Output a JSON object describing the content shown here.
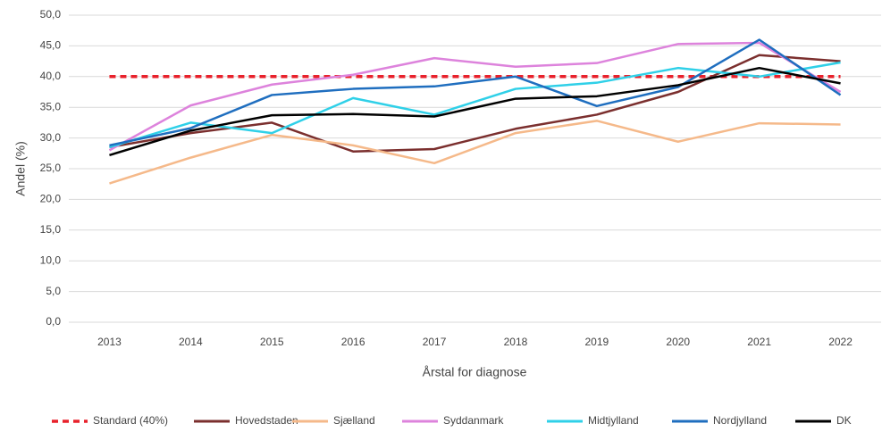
{
  "chart_data": {
    "type": "line",
    "y_label": "Andel (%)",
    "x_label": "Årstal for diagnose",
    "categories": [
      "2013",
      "2014",
      "2015",
      "2016",
      "2017",
      "2018",
      "2019",
      "2020",
      "2021",
      "2022"
    ],
    "ylim": [
      0,
      50
    ],
    "yticks": [
      {
        "value": 0,
        "label": "0,0"
      },
      {
        "value": 5,
        "label": "5,0"
      },
      {
        "value": 10,
        "label": "10,0"
      },
      {
        "value": 15,
        "label": "15,0"
      },
      {
        "value": 20,
        "label": "20,0"
      },
      {
        "value": 25,
        "label": "25,0"
      },
      {
        "value": 30,
        "label": "30,0"
      },
      {
        "value": 35,
        "label": "35,0"
      },
      {
        "value": 40,
        "label": "40,0"
      },
      {
        "value": 45,
        "label": "45,0"
      },
      {
        "value": 50,
        "label": "50,0"
      }
    ],
    "grid": true,
    "legend": "bottom",
    "series": [
      {
        "name": "Standard (40%)",
        "color": "#e8212b",
        "dashed": true,
        "values": [
          40,
          40,
          40,
          40,
          40,
          40,
          40,
          40,
          40,
          40
        ]
      },
      {
        "name": "Hovedstaden",
        "color": "#7b2f2e",
        "values": [
          28.5,
          30.8,
          32.5,
          27.8,
          28.2,
          31.5,
          33.8,
          37.5,
          43.5,
          42.5
        ]
      },
      {
        "name": "Sjælland",
        "color": "#f5b98a",
        "values": [
          22.6,
          26.8,
          30.5,
          28.8,
          25.9,
          30.8,
          32.8,
          29.4,
          32.4,
          32.2
        ]
      },
      {
        "name": "Syddanmark",
        "color": "#dd83dc",
        "values": [
          28.0,
          35.3,
          38.7,
          40.3,
          43.0,
          41.6,
          42.2,
          45.3,
          45.5,
          37.5
        ]
      },
      {
        "name": "Midtjylland",
        "color": "#2fd0e8",
        "values": [
          28.5,
          32.5,
          30.8,
          36.5,
          33.8,
          38.0,
          39.0,
          41.4,
          40.0,
          42.3
        ]
      },
      {
        "name": "Nordjylland",
        "color": "#1f6ebf",
        "values": [
          28.8,
          31.6,
          37.0,
          38.0,
          38.4,
          40.0,
          35.2,
          38.3,
          46.0,
          37.0
        ]
      },
      {
        "name": "DK",
        "color": "#000000",
        "values": [
          27.2,
          31.2,
          33.7,
          33.9,
          33.5,
          36.4,
          36.8,
          38.6,
          41.4,
          38.9
        ]
      }
    ]
  }
}
